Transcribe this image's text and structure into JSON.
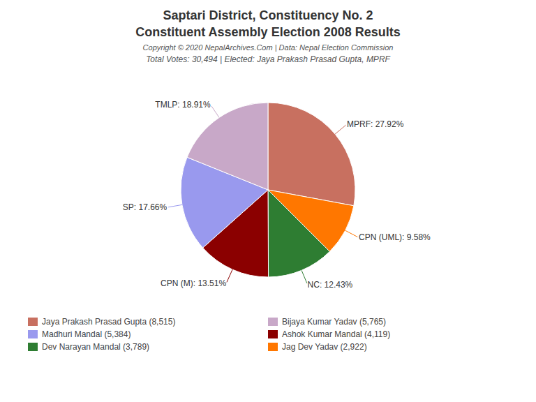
{
  "chart_data": {
    "type": "pie",
    "title": [
      "Saptari District, Constituency No. 2",
      "Constituent Assembly Election 2008 Results"
    ],
    "annotations": [
      "Copyright © 2020 NepalArchives.Com | Data: Nepal Election Commission"
    ],
    "subtitle": "Total Votes: 30,494 | Elected: Jaya Prakash Prasad Gupta, MPRF",
    "categories": [
      "MPRF",
      "CPN (UML)",
      "NC",
      "CPN (M)",
      "SP",
      "TMLP"
    ],
    "values": [
      27.92,
      9.58,
      12.43,
      13.51,
      17.66,
      18.91
    ],
    "value_labels": [
      "MPRF: 27.92%",
      "CPN (UML): 9.58%",
      "NC: 12.43%",
      "CPN (M): 13.51%",
      "SP: 17.66%",
      "TMLP: 18.91%"
    ],
    "colors": [
      "#c87060",
      "#ff7700",
      "#2e7d32",
      "#8b0000",
      "#9999ee",
      "#c8a8c8"
    ],
    "data_labels": true,
    "legend_entries": [
      {
        "name": "Jaya Prakash Prasad Gupta (8,515)",
        "color": "#c87060"
      },
      {
        "name": "Madhuri Mandal (5,384)",
        "color": "#9999ee"
      },
      {
        "name": "Dev Narayan Mandal (3,789)",
        "color": "#2e7d32"
      },
      {
        "name": "Bijaya Kumar Yadav (5,765)",
        "color": "#c8a8c8"
      },
      {
        "name": "Ashok Kumar Mandal (4,119)",
        "color": "#8b0000"
      },
      {
        "name": "Jag Dev Yadav (2,922)",
        "color": "#ff7700"
      }
    ]
  }
}
